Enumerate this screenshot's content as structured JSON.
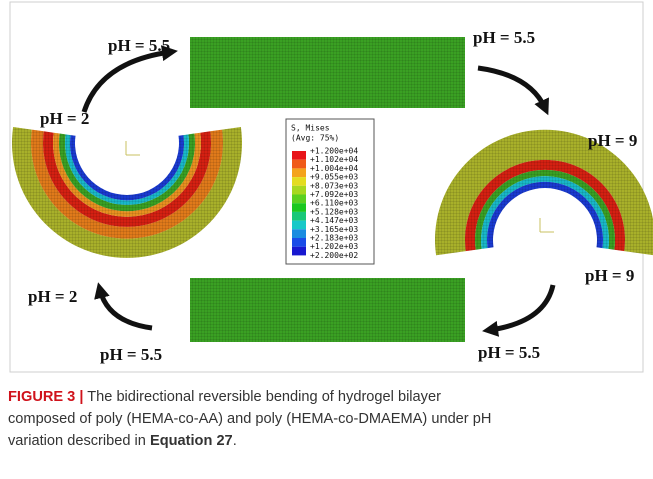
{
  "figure": {
    "labels": [
      "pH = 5.5",
      "pH = 5.5",
      "pH = 2",
      "pH = 9",
      "pH = 2",
      "pH = 9",
      "pH = 5.5",
      "pH = 5.5"
    ],
    "legend": {
      "title": "S, Mises",
      "subtitle": "(Avg: 75%)",
      "values": [
        "+1.200e+04",
        "+1.102e+04",
        "+1.004e+04",
        "+9.055e+03",
        "+8.073e+03",
        "+7.092e+03",
        "+6.110e+03",
        "+5.128e+03",
        "+4.147e+03",
        "+3.165e+03",
        "+2.183e+03",
        "+1.202e+03",
        "+2.200e+02"
      ]
    }
  },
  "caption": {
    "label": "FIGURE 3 |",
    "text": [
      " The bidirectional reversible bending of hydrogel bilayer",
      "composed of poly (HEMA-co-AA) and poly (HEMA-co-DMAEMA) under pH",
      "variation described in "
    ],
    "reference": "Equation 27",
    "end": "."
  }
}
